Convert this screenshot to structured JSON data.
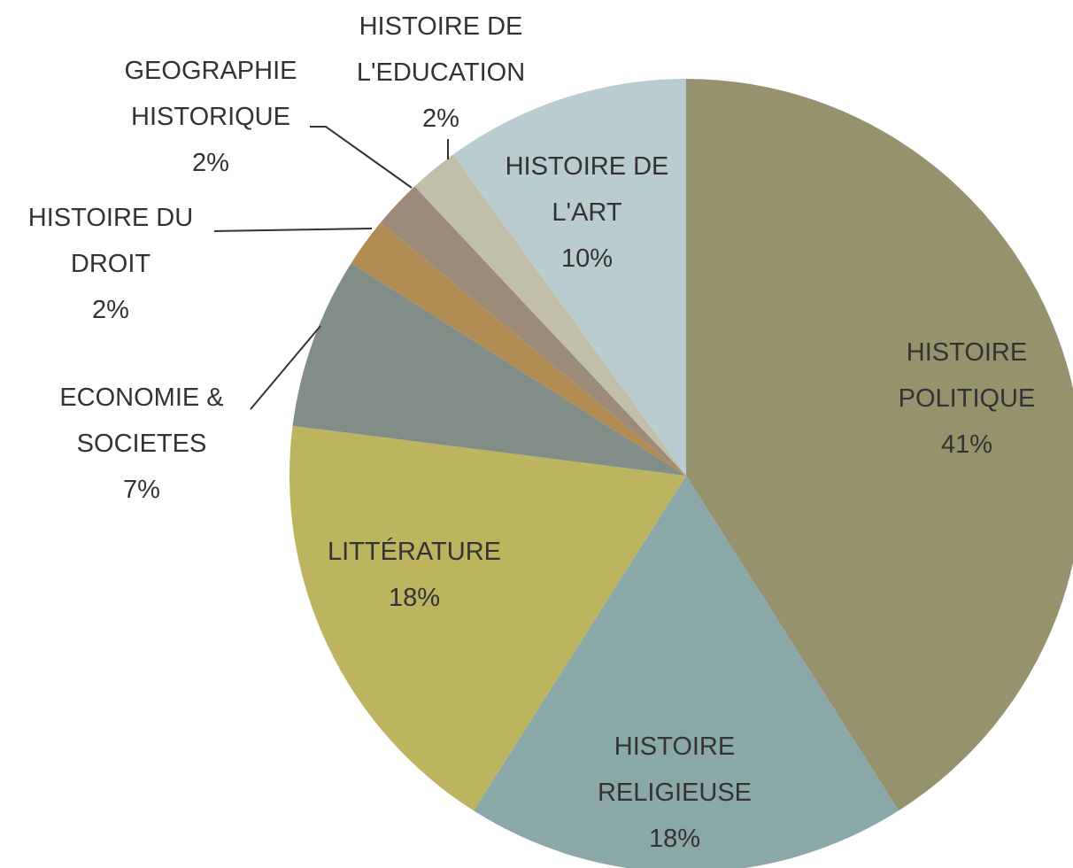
{
  "chart_data": {
    "type": "pie",
    "categories": [
      "HISTOIRE POLITIQUE",
      "HISTOIRE RELIGIEUSE",
      "LITTÉRATURE",
      "ECONOMIE & SOCIETES",
      "HISTOIRE DU DROIT",
      "GEOGRAPHIE HISTORIQUE",
      "HISTOIRE DE L'EDUCATION",
      "HISTOIRE DE L'ART"
    ],
    "values": [
      41,
      18,
      18,
      7,
      2,
      2,
      2,
      10
    ],
    "value_labels": [
      "41%",
      "18%",
      "18%",
      "7%",
      "2%",
      "2%",
      "2%",
      "10%"
    ],
    "colors": [
      "#96926d",
      "#8ba8a8",
      "#bcb45e",
      "#838d88",
      "#b08b52",
      "#9b8b78",
      "#c2bfa8",
      "#b9cccf"
    ]
  }
}
